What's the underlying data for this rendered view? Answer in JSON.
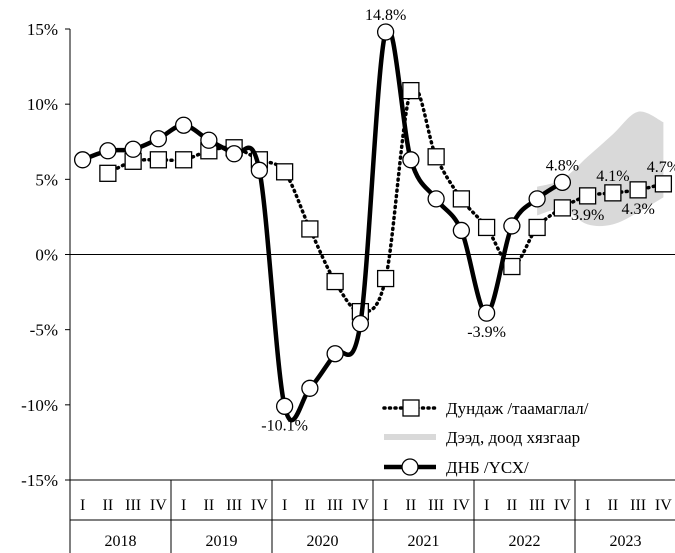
{
  "chart_data": {
    "type": "line",
    "y_ticks": [
      "15%",
      "10%",
      "5%",
      "0%",
      "-5%",
      "-10%",
      "-15%"
    ],
    "y_tick_values": [
      15,
      10,
      5,
      0,
      -5,
      -10,
      -15
    ],
    "ylim": [
      -15,
      15
    ],
    "quarter_labels": [
      "I",
      "II",
      "III",
      "IV"
    ],
    "years": [
      "2018",
      "2019",
      "2020",
      "2021",
      "2022",
      "2023"
    ],
    "grid": false,
    "legend_position": "bottom-right",
    "series": [
      {
        "name": "Дундаж /таамаглал/",
        "style": "dotted-square",
        "values": [
          null,
          5.4,
          6.2,
          6.3,
          6.3,
          6.9,
          7.1,
          6.3,
          5.5,
          1.7,
          -1.8,
          -3.8,
          -1.6,
          10.9,
          6.5,
          3.7,
          1.8,
          -0.8,
          1.8,
          3.1,
          3.9,
          4.1,
          4.3,
          4.7
        ]
      },
      {
        "name": "Дээд, доод хязгаар",
        "style": "band",
        "lower": [
          null,
          null,
          null,
          null,
          null,
          null,
          null,
          null,
          null,
          null,
          null,
          null,
          null,
          null,
          null,
          null,
          null,
          null,
          2.6,
          3.0,
          2.0,
          2.0,
          2.8,
          3.8
        ],
        "upper": [
          null,
          null,
          null,
          null,
          null,
          null,
          null,
          null,
          null,
          null,
          null,
          null,
          null,
          null,
          null,
          null,
          null,
          null,
          4.5,
          5.0,
          6.5,
          8.0,
          9.5,
          8.8
        ]
      },
      {
        "name": "ДНБ /ҮСХ/",
        "style": "solid-circle",
        "values": [
          6.3,
          6.9,
          7.0,
          7.7,
          8.6,
          7.6,
          6.7,
          5.6,
          -10.1,
          -8.9,
          -6.6,
          -4.6,
          14.8,
          6.3,
          3.7,
          1.6,
          -3.9,
          1.9,
          3.7,
          4.8,
          null,
          null,
          null,
          null
        ]
      }
    ],
    "data_labels": [
      {
        "series": 2,
        "index": 12,
        "text": "14.8%",
        "pos": "above"
      },
      {
        "series": 2,
        "index": 8,
        "text": "-10.1%",
        "pos": "below"
      },
      {
        "series": 2,
        "index": 16,
        "text": "-3.9%",
        "pos": "below"
      },
      {
        "series": 2,
        "index": 19,
        "text": "4.8%",
        "pos": "above"
      },
      {
        "series": 0,
        "index": 20,
        "text": "3.9%",
        "pos": "below"
      },
      {
        "series": 0,
        "index": 21,
        "text": "4.1%",
        "pos": "above"
      },
      {
        "series": 0,
        "index": 22,
        "text": "4.3%",
        "pos": "below"
      },
      {
        "series": 0,
        "index": 23,
        "text": "4.7%",
        "pos": "above"
      }
    ]
  }
}
